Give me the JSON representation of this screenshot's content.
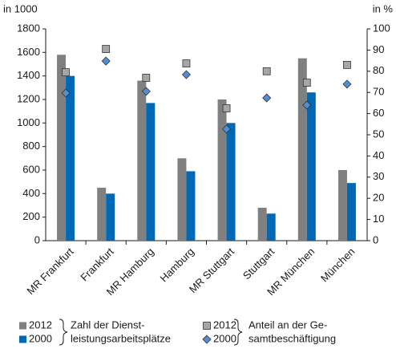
{
  "chart_data": {
    "type": "bar",
    "y_label": "in 1000",
    "y2_label": "in %",
    "categories": [
      "MR Frankfurt",
      "Frankfurt",
      "MR Hamburg",
      "Hamburg",
      "MR Stuttgart",
      "Stuttgart",
      "MR München",
      "München"
    ],
    "series": [
      {
        "name": "2012",
        "color": "#808080",
        "values": [
          1580,
          450,
          1360,
          700,
          1200,
          280,
          1550,
          600
        ]
      },
      {
        "name": "2000",
        "color": "#0068b4",
        "values": [
          1400,
          400,
          1170,
          590,
          1000,
          230,
          1260,
          490
        ]
      },
      {
        "name": "2012",
        "color": "#a6a6a6",
        "axis": "y2",
        "marker": "square",
        "values": [
          79.5,
          90.5,
          76.9,
          83.7,
          62.5,
          80,
          74.6,
          83
        ]
      },
      {
        "name": "2000",
        "color": "#4f8fd0",
        "axis": "y2",
        "marker": "diamond",
        "values": [
          69.7,
          84.8,
          70.5,
          78.4,
          52.7,
          67.4,
          64,
          73.9
        ]
      }
    ],
    "legend_groups": [
      [
        "Zahl der Dienst-",
        "leistungsarbeitsplätze"
      ],
      [
        "Anteil an der Ge-",
        "samtbeschäftigung"
      ]
    ],
    "ylim": [
      0,
      1800
    ],
    "yticks": [
      0,
      200,
      400,
      600,
      800,
      1000,
      1200,
      1400,
      1600,
      1800
    ],
    "y2lim": [
      0,
      100
    ],
    "y2ticks": [
      0,
      10,
      20,
      30,
      40,
      50,
      60,
      70,
      80,
      90,
      100
    ]
  }
}
